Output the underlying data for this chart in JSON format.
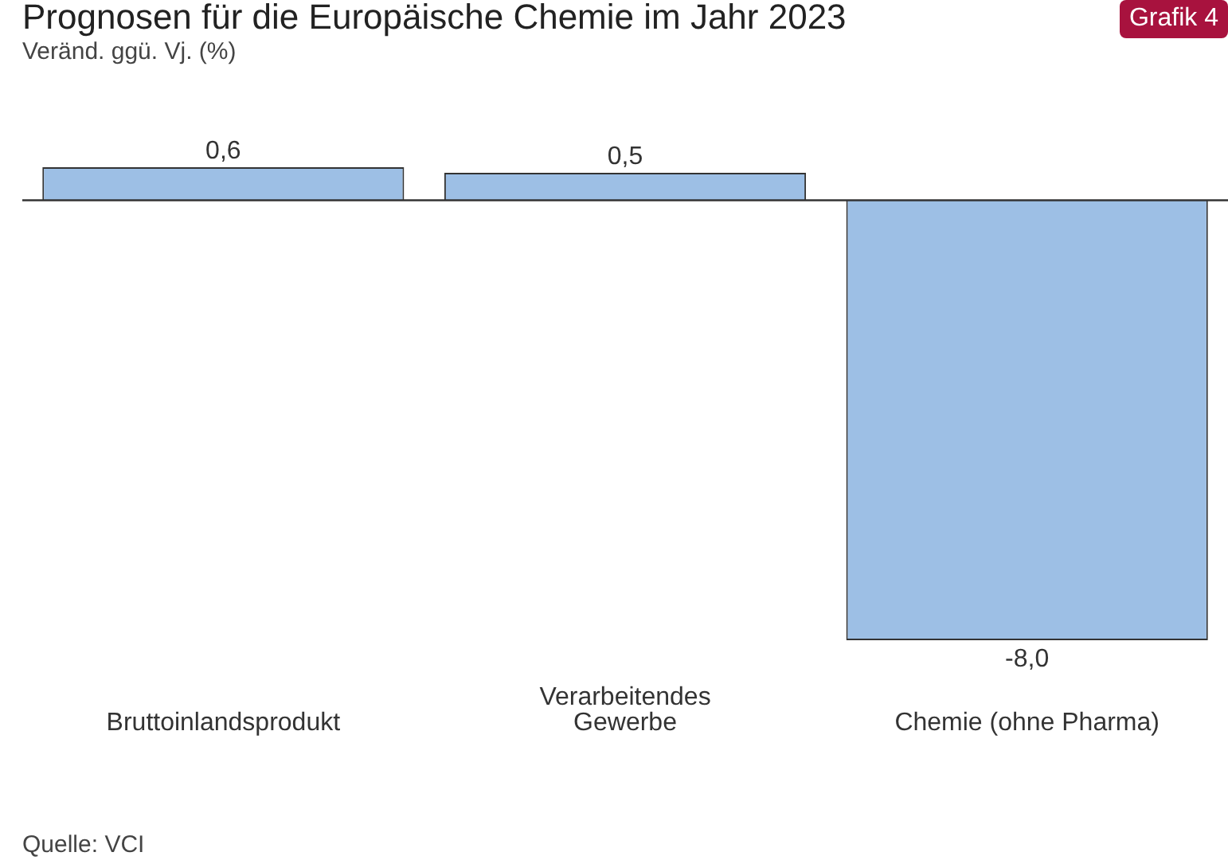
{
  "chart_data": {
    "type": "bar",
    "title": "Prognosen für die Europäische Chemie im Jahr 2023",
    "subtitle": "Veränd. ggü. Vj. (%)",
    "categories": [
      "Bruttoinlandsprodukt",
      "Verarbeitendes\nGewerbe",
      "Chemie (ohne Pharma)"
    ],
    "values": [
      0.6,
      0.5,
      -8.0
    ],
    "value_labels": [
      "0,6",
      "0,5",
      "-8,0"
    ],
    "color": "#9dbfe5",
    "legend": false,
    "annotations": [
      "Grafik 4",
      "Quelle: VCI"
    ]
  }
}
